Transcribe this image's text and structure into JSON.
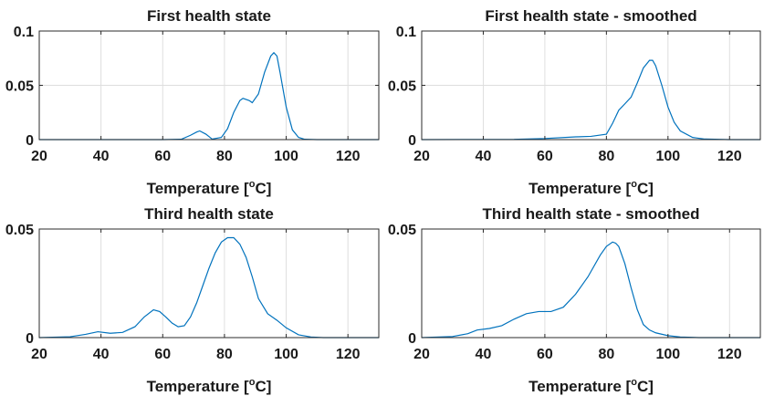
{
  "chart_data": [
    {
      "type": "line",
      "title": "First health state",
      "xlabel_text": "Temperature [",
      "xlabel_sup": "o",
      "xlabel_tail": "C]",
      "ylabel": "",
      "xlim": [
        20,
        130
      ],
      "ylim": [
        0,
        0.1
      ],
      "xticks": [
        20,
        40,
        60,
        80,
        100,
        120
      ],
      "yticks": [
        0,
        0.05,
        0.1
      ],
      "ytick_labels": [
        "0",
        "0.05",
        "0.1"
      ],
      "grid": true,
      "color": "#0072BD",
      "series": [
        {
          "x": [
            20,
            60,
            66,
            69,
            71,
            72,
            74,
            76,
            79,
            81,
            83,
            85,
            86,
            88,
            89,
            91,
            93,
            95,
            96,
            97,
            98,
            100,
            102,
            104,
            106,
            110,
            130
          ],
          "y": [
            0,
            0,
            0.0003,
            0.004,
            0.007,
            0.008,
            0.005,
            0.0005,
            0.002,
            0.01,
            0.025,
            0.036,
            0.038,
            0.036,
            0.034,
            0.042,
            0.062,
            0.077,
            0.08,
            0.077,
            0.062,
            0.03,
            0.009,
            0.002,
            0.0003,
            0,
            0
          ]
        }
      ]
    },
    {
      "type": "line",
      "title": "First health state - smoothed",
      "xlabel_text": "Temperature [",
      "xlabel_sup": "o",
      "xlabel_tail": "C]",
      "ylabel": "",
      "xlim": [
        20,
        130
      ],
      "ylim": [
        0,
        0.1
      ],
      "xticks": [
        20,
        40,
        60,
        80,
        100,
        120
      ],
      "yticks": [
        0,
        0.05,
        0.1
      ],
      "ytick_labels": [
        "0",
        "0.05",
        "0.1"
      ],
      "grid": true,
      "color": "#0072BD",
      "series": [
        {
          "x": [
            20,
            50,
            60,
            70,
            75,
            80,
            82,
            84,
            86,
            88,
            90,
            92,
            94,
            95,
            96,
            98,
            100,
            102,
            104,
            108,
            112,
            120,
            130
          ],
          "y": [
            0,
            0.0002,
            0.001,
            0.0025,
            0.003,
            0.005,
            0.015,
            0.027,
            0.033,
            0.039,
            0.052,
            0.066,
            0.073,
            0.073,
            0.068,
            0.05,
            0.03,
            0.016,
            0.008,
            0.002,
            0.0005,
            0,
            0
          ]
        }
      ]
    },
    {
      "type": "line",
      "title": "Third health state",
      "xlabel_text": "Temperature [",
      "xlabel_sup": "o",
      "xlabel_tail": "C]",
      "ylabel": "",
      "xlim": [
        20,
        130
      ],
      "ylim": [
        0,
        0.05
      ],
      "xticks": [
        20,
        40,
        60,
        80,
        100,
        120
      ],
      "yticks": [
        0,
        0.05
      ],
      "ytick_labels": [
        "0",
        "0.05"
      ],
      "grid": true,
      "color": "#0072BD",
      "series": [
        {
          "x": [
            20,
            30,
            35,
            39,
            43,
            47,
            51,
            54,
            57,
            59,
            61,
            63,
            65,
            67,
            69,
            71,
            73,
            75,
            77,
            79,
            81,
            83,
            85,
            87,
            89,
            91,
            94,
            97,
            100,
            104,
            108,
            112,
            130
          ],
          "y": [
            0,
            0.0004,
            0.0015,
            0.0027,
            0.002,
            0.0024,
            0.005,
            0.0095,
            0.0128,
            0.012,
            0.0095,
            0.0067,
            0.005,
            0.0055,
            0.0095,
            0.016,
            0.024,
            0.032,
            0.039,
            0.044,
            0.046,
            0.046,
            0.043,
            0.037,
            0.028,
            0.018,
            0.011,
            0.008,
            0.0045,
            0.0013,
            0.0003,
            0,
            0
          ]
        }
      ]
    },
    {
      "type": "line",
      "title": "Third health state - smoothed",
      "xlabel_text": "Temperature [",
      "xlabel_sup": "o",
      "xlabel_tail": "C]",
      "ylabel": "",
      "xlim": [
        20,
        130
      ],
      "ylim": [
        0,
        0.05
      ],
      "xticks": [
        20,
        40,
        60,
        80,
        100,
        120
      ],
      "yticks": [
        0,
        0.05
      ],
      "ytick_labels": [
        "0",
        "0.05"
      ],
      "grid": true,
      "color": "#0072BD",
      "series": [
        {
          "x": [
            20,
            30,
            35,
            38,
            42,
            46,
            50,
            54,
            58,
            62,
            66,
            70,
            74,
            78,
            80,
            82,
            83,
            84,
            86,
            88,
            90,
            92,
            94,
            96,
            100,
            104,
            110,
            130
          ],
          "y": [
            0,
            0.0005,
            0.0018,
            0.0035,
            0.0042,
            0.0055,
            0.0085,
            0.011,
            0.012,
            0.012,
            0.014,
            0.02,
            0.028,
            0.038,
            0.042,
            0.044,
            0.0435,
            0.042,
            0.034,
            0.023,
            0.013,
            0.006,
            0.0035,
            0.0022,
            0.0009,
            0.0003,
            0,
            0
          ]
        }
      ]
    }
  ]
}
